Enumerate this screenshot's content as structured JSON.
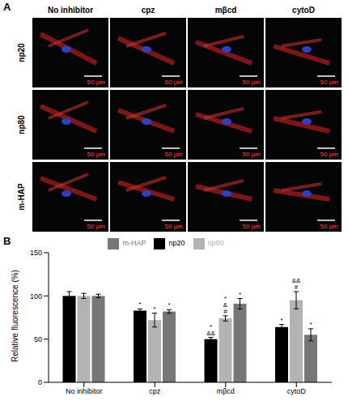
{
  "panel_a": {
    "label": "A",
    "columns": [
      "No inhibitor",
      "cpz",
      "mβcd",
      "cytoD"
    ],
    "rows": [
      "np20",
      "np80",
      "m-HAP"
    ],
    "scale_bar": "50 µm"
  },
  "chart_data": {
    "type": "bar",
    "title": "B",
    "y_label": "Relative fluorescence (%)",
    "categories": [
      "No inhibitor",
      "cpz",
      "mβcd",
      "cytoD"
    ],
    "series": [
      {
        "name": "np20",
        "color": "#000000",
        "values": [
          100,
          83,
          50,
          64
        ],
        "errors": [
          5,
          2,
          2,
          3
        ],
        "annotations": [
          [],
          [
            "*"
          ],
          [
            "*",
            "&&"
          ],
          [
            "*"
          ]
        ]
      },
      {
        "name": "np80",
        "color": "#b3b3b3",
        "values": [
          100,
          72,
          74,
          95
        ],
        "errors": [
          3,
          8,
          3,
          10
        ],
        "annotations": [
          [],
          [
            "*"
          ],
          [
            "*",
            "&",
            "#"
          ],
          [
            "&&",
            "#"
          ]
        ]
      },
      {
        "name": "m-HAP",
        "color": "#777777",
        "values": [
          100,
          82,
          91,
          55
        ],
        "errors": [
          2,
          2,
          6,
          7
        ],
        "annotations": [
          [],
          [
            "*"
          ],
          [
            "*"
          ],
          [
            "*"
          ]
        ]
      }
    ],
    "ylim": [
      0,
      150
    ],
    "yticks": [
      0,
      50,
      100,
      150
    ],
    "legend": "top"
  }
}
